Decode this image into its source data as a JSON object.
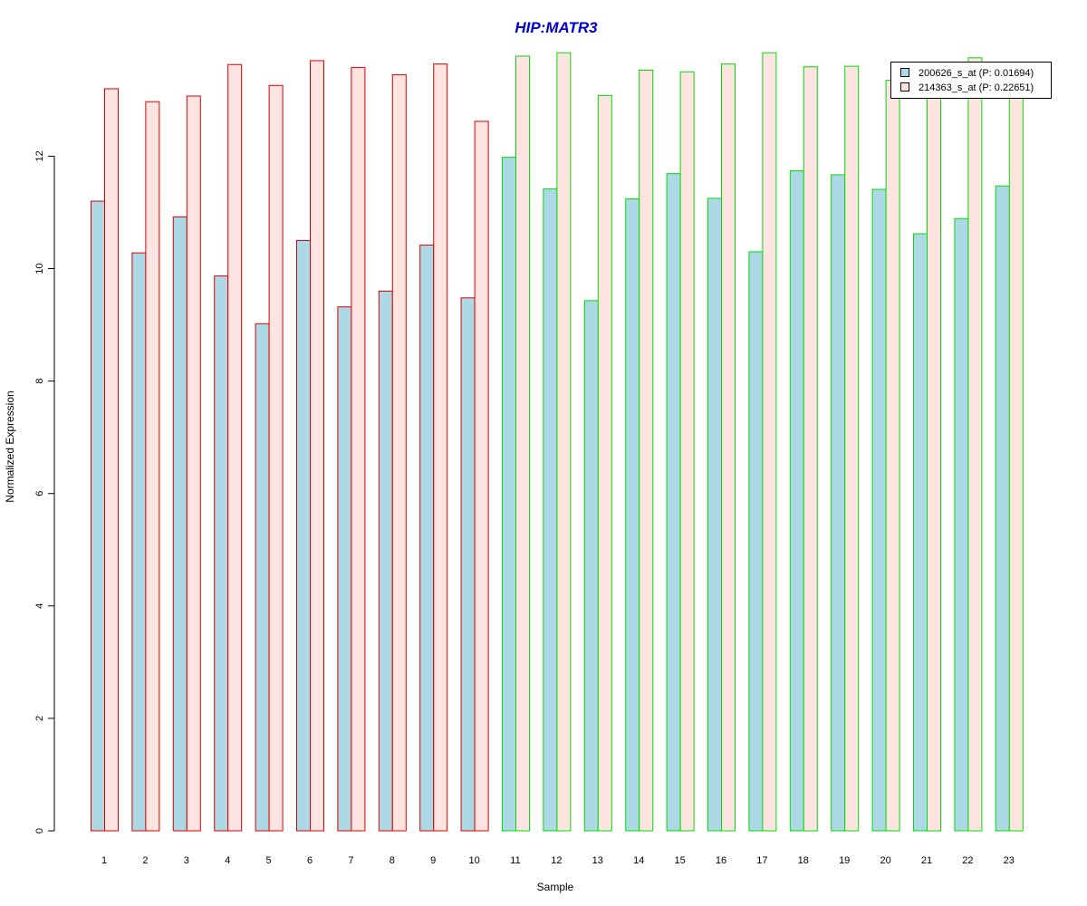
{
  "chart_data": {
    "type": "bar",
    "title": "HIP:MATR3",
    "xlabel": "Sample",
    "ylabel": "Normalized Expression",
    "ylim": [
      0,
      13.8
    ],
    "yticks": [
      0,
      2,
      4,
      6,
      8,
      10,
      12
    ],
    "categories": [
      "1",
      "2",
      "3",
      "4",
      "5",
      "6",
      "7",
      "8",
      "9",
      "10",
      "11",
      "12",
      "13",
      "14",
      "15",
      "16",
      "17",
      "18",
      "19",
      "20",
      "21",
      "22",
      "23"
    ],
    "group_border_colors": [
      "#dd0000",
      "#dd0000",
      "#dd0000",
      "#dd0000",
      "#dd0000",
      "#dd0000",
      "#dd0000",
      "#dd0000",
      "#dd0000",
      "#dd0000",
      "#00dd00",
      "#00dd00",
      "#00dd00",
      "#00dd00",
      "#00dd00",
      "#00dd00",
      "#00dd00",
      "#00dd00",
      "#00dd00",
      "#00dd00",
      "#00dd00",
      "#00dd00",
      "#00dd00"
    ],
    "series": [
      {
        "name": "200626_s_at (P: 0.01694)",
        "fill": "#add8e6",
        "values": [
          11.2,
          10.28,
          10.92,
          9.87,
          9.02,
          10.5,
          9.32,
          9.6,
          10.42,
          9.48,
          11.98,
          11.42,
          9.43,
          11.24,
          11.69,
          11.25,
          10.3,
          11.74,
          11.67,
          11.41,
          10.62,
          10.89,
          11.47
        ]
      },
      {
        "name": "214363_s_at (P: 0.22651)",
        "fill": "#fde4e1",
        "values": [
          13.2,
          12.97,
          13.07,
          13.63,
          13.26,
          13.7,
          13.58,
          13.45,
          13.64,
          12.62,
          13.78,
          13.84,
          13.08,
          13.53,
          13.5,
          13.64,
          13.84,
          13.59,
          13.6,
          13.35,
          13.6,
          13.75,
          13.6
        ]
      }
    ],
    "title_color": "#0000cc",
    "legend_position": "top-right",
    "grid": false
  }
}
